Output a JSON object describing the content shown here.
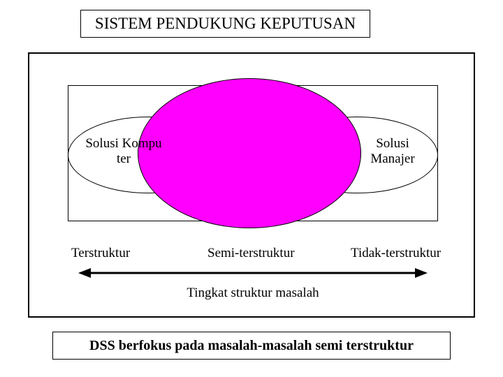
{
  "title": "SISTEM PENDUKUNG KEPUTUSAN",
  "diagram": {
    "center_ellipse_color": "#ff00ff",
    "left_label": "Solusi Kompu\nter",
    "right_label": "Solusi\nManajer"
  },
  "categories": {
    "c1": "Terstruktur",
    "c2": "Semi-terstruktur",
    "c3": "Tidak-terstruktur"
  },
  "axis_label": "Tingkat struktur masalah",
  "footer": "DSS berfokus pada masalah-masalah semi terstruktur",
  "arrow": {
    "stroke": "#000000",
    "stroke_width": 3
  }
}
